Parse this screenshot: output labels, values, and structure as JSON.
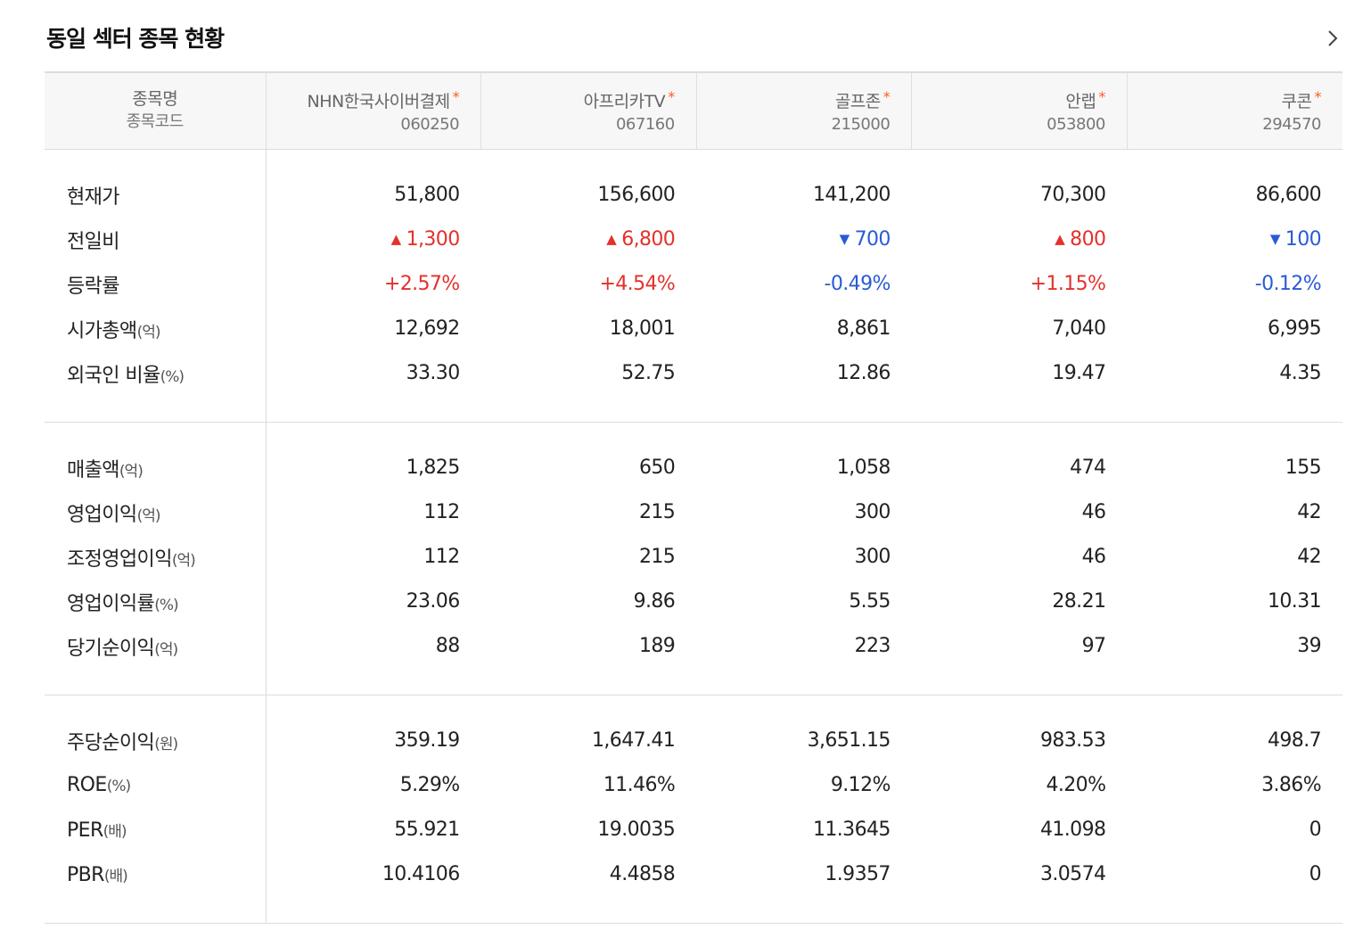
{
  "title": "동일 섹터 종목 현황",
  "header": {
    "label_name": "종목명",
    "label_code": "종목코드",
    "stocks": [
      {
        "name": "NHN한국사이버결제",
        "code": "060250"
      },
      {
        "name": "아프리카TV",
        "code": "067160"
      },
      {
        "name": "골프존",
        "code": "215000"
      },
      {
        "name": "안랩",
        "code": "053800"
      },
      {
        "name": "쿠콘",
        "code": "294570"
      }
    ],
    "asterisk": "*"
  },
  "colors": {
    "up": "#e4312b",
    "down": "#2a5bd7",
    "asterisk": "#ff5a1f"
  },
  "icons": {
    "more": "chevron-right-icon",
    "up": "triangle-up-icon",
    "down": "triangle-down-icon"
  },
  "sections": [
    {
      "rows": [
        {
          "label": "현재가",
          "unit": "",
          "values": [
            "51,800",
            "156,600",
            "141,200",
            "70,300",
            "86,600"
          ]
        },
        {
          "label": "전일비",
          "unit": "",
          "values": [
            "1,300",
            "6,800",
            "700",
            "800",
            "100"
          ],
          "trend": [
            "up",
            "up",
            "down",
            "up",
            "down"
          ],
          "arrow": true
        },
        {
          "label": "등락률",
          "unit": "",
          "values": [
            "+2.57%",
            "+4.54%",
            "-0.49%",
            "+1.15%",
            "-0.12%"
          ],
          "trend": [
            "up",
            "up",
            "down",
            "up",
            "down"
          ]
        },
        {
          "label": "시가총액",
          "unit": "(억)",
          "values": [
            "12,692",
            "18,001",
            "8,861",
            "7,040",
            "6,995"
          ]
        },
        {
          "label": "외국인 비율",
          "unit": "(%)",
          "values": [
            "33.30",
            "52.75",
            "12.86",
            "19.47",
            "4.35"
          ]
        }
      ]
    },
    {
      "rows": [
        {
          "label": "매출액",
          "unit": "(억)",
          "values": [
            "1,825",
            "650",
            "1,058",
            "474",
            "155"
          ]
        },
        {
          "label": "영업이익",
          "unit": "(억)",
          "values": [
            "112",
            "215",
            "300",
            "46",
            "42"
          ]
        },
        {
          "label": "조정영업이익",
          "unit": "(억)",
          "values": [
            "112",
            "215",
            "300",
            "46",
            "42"
          ]
        },
        {
          "label": "영업이익률",
          "unit": "(%)",
          "values": [
            "23.06",
            "9.86",
            "5.55",
            "28.21",
            "10.31"
          ]
        },
        {
          "label": "당기순이익",
          "unit": "(억)",
          "values": [
            "88",
            "189",
            "223",
            "97",
            "39"
          ]
        }
      ]
    },
    {
      "rows": [
        {
          "label": "주당순이익",
          "unit": "(원)",
          "values": [
            "359.19",
            "1,647.41",
            "3,651.15",
            "983.53",
            "498.7"
          ]
        },
        {
          "label": "ROE",
          "unit": "(%)",
          "values": [
            "5.29%",
            "11.46%",
            "9.12%",
            "4.20%",
            "3.86%"
          ]
        },
        {
          "label": "PER",
          "unit": "(배)",
          "values": [
            "55.921",
            "19.0035",
            "11.3645",
            "41.098",
            "0"
          ]
        },
        {
          "label": "PBR",
          "unit": "(배)",
          "values": [
            "10.4106",
            "4.4858",
            "1.9357",
            "3.0574",
            "0"
          ]
        }
      ]
    }
  ]
}
